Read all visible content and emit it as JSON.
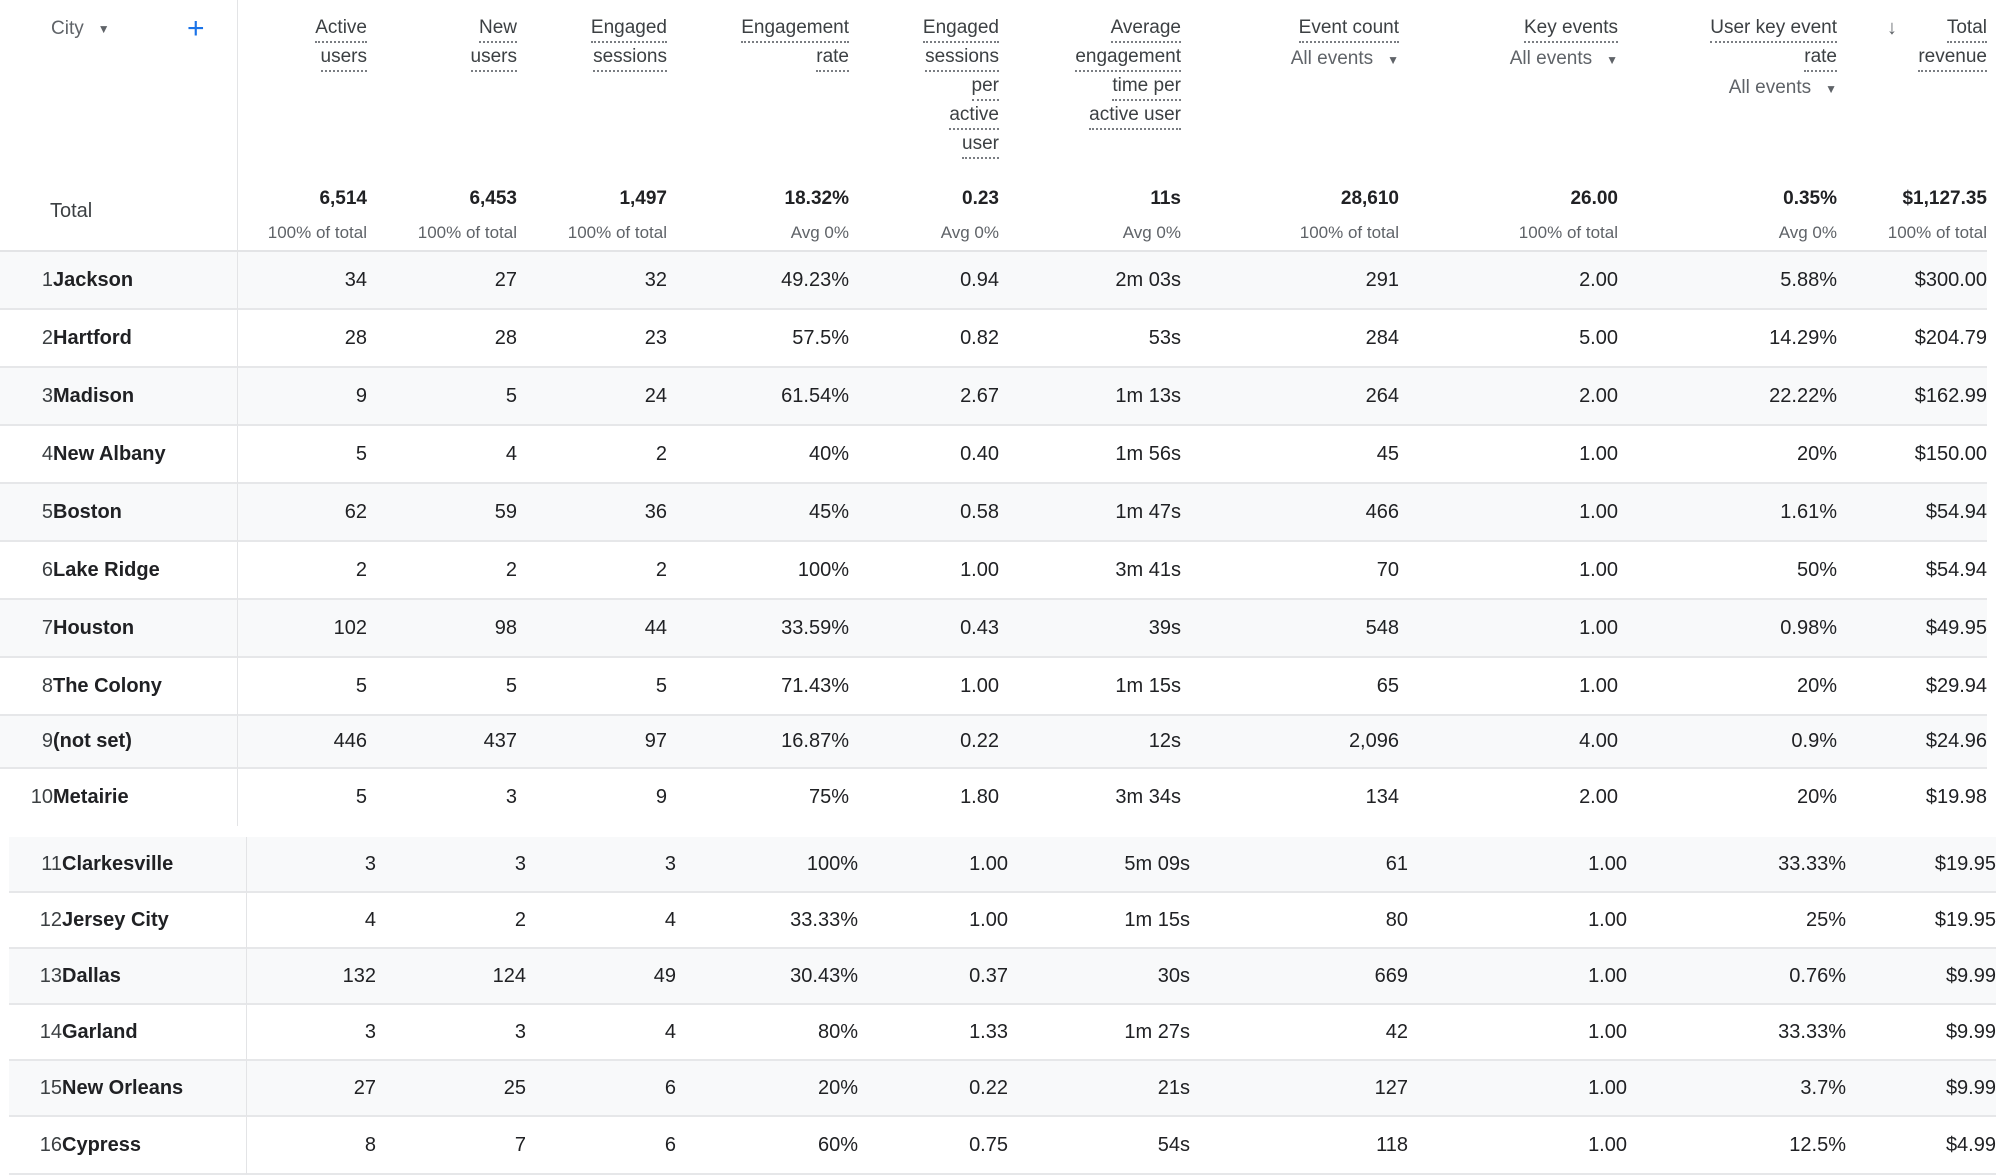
{
  "header": {
    "dimension": "City",
    "add_icon": "plus-icon",
    "sort_icon": "arrow-down-icon",
    "columns": [
      {
        "lines": [
          "Active",
          "users"
        ]
      },
      {
        "lines": [
          "New",
          "users"
        ]
      },
      {
        "lines": [
          "Engaged",
          "sessions"
        ]
      },
      {
        "lines": [
          "Engagement",
          "rate"
        ]
      },
      {
        "lines": [
          "Engaged",
          "sessions",
          "per",
          "active",
          "user"
        ]
      },
      {
        "lines": [
          "Average",
          "engagement",
          "time per",
          "active user"
        ]
      },
      {
        "lines": [
          "Event count"
        ],
        "selector": "All events"
      },
      {
        "lines": [
          "Key events"
        ],
        "selector": "All events"
      },
      {
        "lines": [
          "User key event",
          "rate"
        ],
        "selector": "All events"
      },
      {
        "lines": [
          "Total",
          "revenue"
        ],
        "sorted": true
      }
    ]
  },
  "total": {
    "label": "Total",
    "values": [
      "6,514",
      "6,453",
      "1,497",
      "18.32%",
      "0.23",
      "11s",
      "28,610",
      "26.00",
      "0.35%",
      "$1,127.35"
    ],
    "subs": [
      "100% of total",
      "100% of total",
      "100% of total",
      "Avg 0%",
      "Avg 0%",
      "Avg 0%",
      "100% of total",
      "100% of total",
      "Avg 0%",
      "100% of total"
    ]
  },
  "rows": [
    {
      "n": "1",
      "city": "Jackson",
      "v": [
        "34",
        "27",
        "32",
        "49.23%",
        "0.94",
        "2m 03s",
        "291",
        "2.00",
        "5.88%",
        "$300.00"
      ]
    },
    {
      "n": "2",
      "city": "Hartford",
      "v": [
        "28",
        "28",
        "23",
        "57.5%",
        "0.82",
        "53s",
        "284",
        "5.00",
        "14.29%",
        "$204.79"
      ]
    },
    {
      "n": "3",
      "city": "Madison",
      "v": [
        "9",
        "5",
        "24",
        "61.54%",
        "2.67",
        "1m 13s",
        "264",
        "2.00",
        "22.22%",
        "$162.99"
      ]
    },
    {
      "n": "4",
      "city": "New Albany",
      "v": [
        "5",
        "4",
        "2",
        "40%",
        "0.40",
        "1m 56s",
        "45",
        "1.00",
        "20%",
        "$150.00"
      ]
    },
    {
      "n": "5",
      "city": "Boston",
      "v": [
        "62",
        "59",
        "36",
        "45%",
        "0.58",
        "1m 47s",
        "466",
        "1.00",
        "1.61%",
        "$54.94"
      ]
    },
    {
      "n": "6",
      "city": "Lake Ridge",
      "v": [
        "2",
        "2",
        "2",
        "100%",
        "1.00",
        "3m 41s",
        "70",
        "1.00",
        "50%",
        "$54.94"
      ]
    },
    {
      "n": "7",
      "city": "Houston",
      "v": [
        "102",
        "98",
        "44",
        "33.59%",
        "0.43",
        "39s",
        "548",
        "1.00",
        "0.98%",
        "$49.95"
      ]
    },
    {
      "n": "8",
      "city": "The Colony",
      "v": [
        "5",
        "5",
        "5",
        "71.43%",
        "1.00",
        "1m 15s",
        "65",
        "1.00",
        "20%",
        "$29.94"
      ]
    },
    {
      "n": "9",
      "city": "(not set)",
      "v": [
        "446",
        "437",
        "97",
        "16.87%",
        "0.22",
        "12s",
        "2,096",
        "4.00",
        "0.9%",
        "$24.96"
      ]
    },
    {
      "n": "10",
      "city": "Metairie",
      "v": [
        "5",
        "3",
        "9",
        "75%",
        "1.80",
        "3m 34s",
        "134",
        "2.00",
        "20%",
        "$19.98"
      ]
    },
    {
      "n": "11",
      "city": "Clarkesville",
      "v": [
        "3",
        "3",
        "3",
        "100%",
        "1.00",
        "5m 09s",
        "61",
        "1.00",
        "33.33%",
        "$19.95"
      ]
    },
    {
      "n": "12",
      "city": "Jersey City",
      "v": [
        "4",
        "2",
        "4",
        "33.33%",
        "1.00",
        "1m 15s",
        "80",
        "1.00",
        "25%",
        "$19.95"
      ]
    },
    {
      "n": "13",
      "city": "Dallas",
      "v": [
        "132",
        "124",
        "49",
        "30.43%",
        "0.37",
        "30s",
        "669",
        "1.00",
        "0.76%",
        "$9.99"
      ]
    },
    {
      "n": "14",
      "city": "Garland",
      "v": [
        "3",
        "3",
        "4",
        "80%",
        "1.33",
        "1m 27s",
        "42",
        "1.00",
        "33.33%",
        "$9.99"
      ]
    },
    {
      "n": "15",
      "city": "New Orleans",
      "v": [
        "27",
        "25",
        "6",
        "20%",
        "0.22",
        "21s",
        "127",
        "1.00",
        "3.7%",
        "$9.99"
      ]
    },
    {
      "n": "16",
      "city": "Cypress",
      "v": [
        "8",
        "7",
        "6",
        "60%",
        "0.75",
        "54s",
        "118",
        "1.00",
        "12.5%",
        "$4.99"
      ]
    }
  ]
}
